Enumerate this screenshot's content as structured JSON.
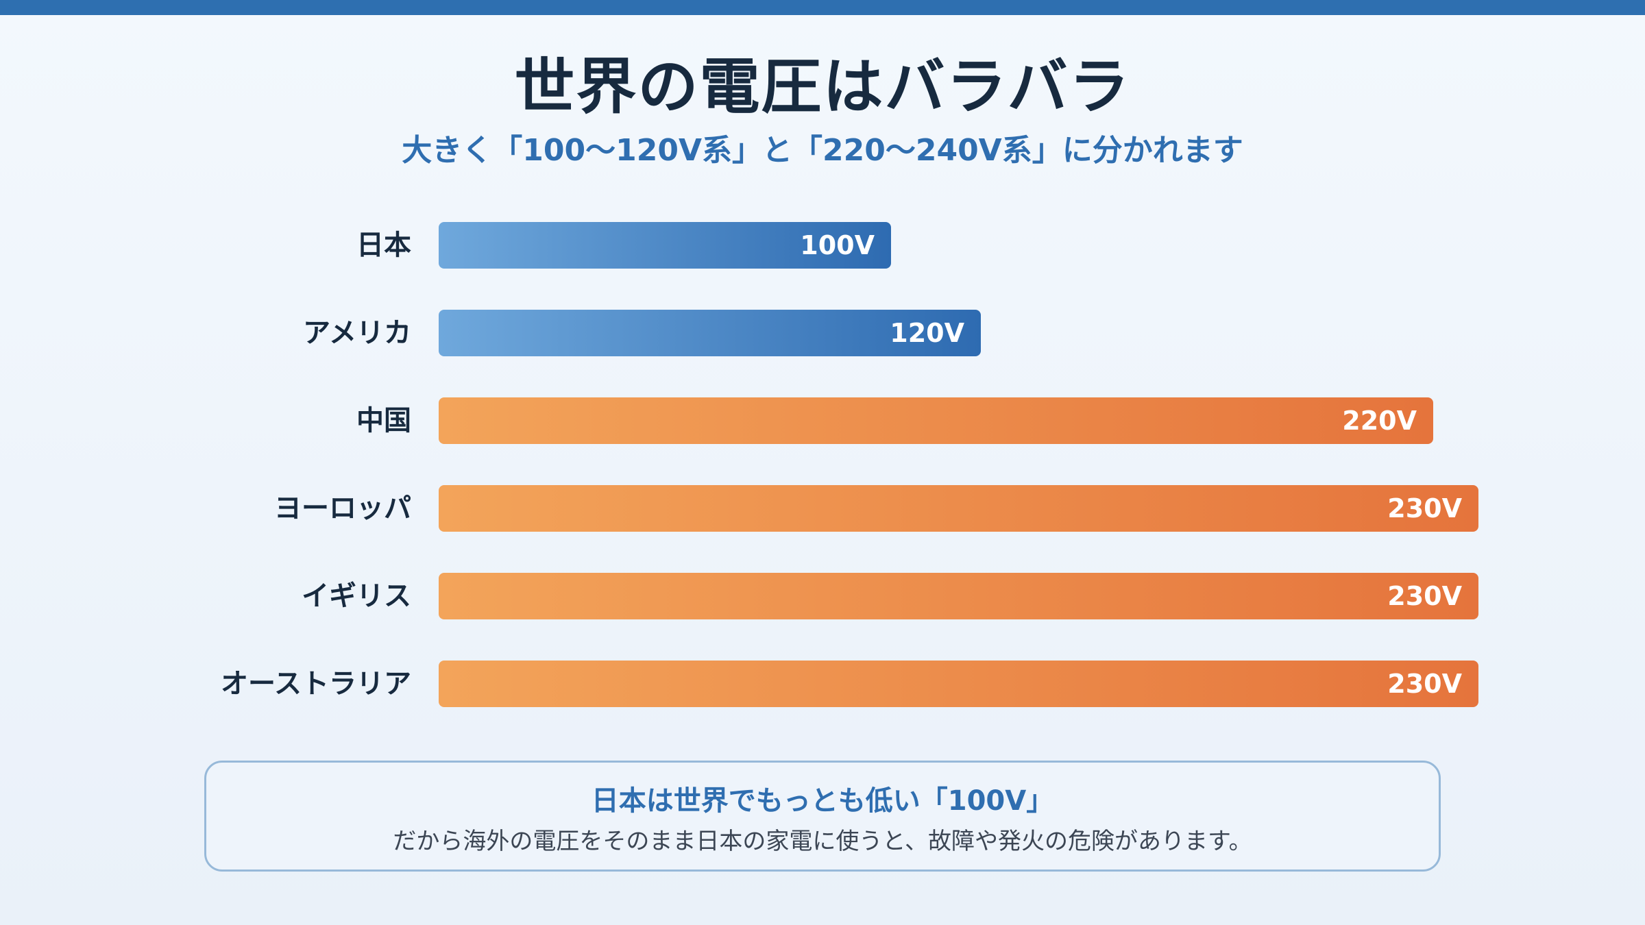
{
  "header": {
    "title": "世界の電圧はバラバラ",
    "subtitle": "大きく「100〜120V系」と「220〜240V系」に分かれます"
  },
  "chart_data": {
    "type": "bar",
    "orientation": "horizontal",
    "categories": [
      "日本",
      "アメリカ",
      "中国",
      "ヨーロッパ",
      "イギリス",
      "オーストラリア"
    ],
    "values": [
      100,
      120,
      220,
      230,
      230,
      230
    ],
    "value_labels": [
      "100V",
      "120V",
      "220V",
      "230V",
      "230V",
      "230V"
    ],
    "groups": [
      "low",
      "low",
      "high",
      "high",
      "high",
      "high"
    ],
    "xlim": [
      0,
      230
    ],
    "grid": false,
    "colors": {
      "low_start": "#6fa8dc",
      "low_end": "#2e6bb1",
      "high_start": "#f3a45a",
      "high_end": "#e5743c"
    }
  },
  "note": {
    "headline": "日本は世界でもっとも低い「100V」",
    "body": "だから海外の電圧をそのまま日本の家電に使うと、故障や発火の危険があります。"
  }
}
